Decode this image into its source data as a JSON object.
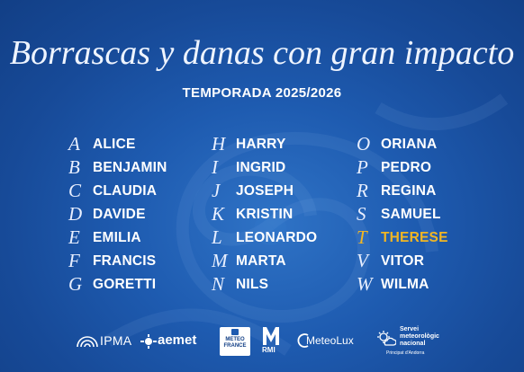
{
  "title": "Borrascas y danas con gran impacto",
  "subtitle": "TEMPORADA 2025/2026",
  "columns": [
    [
      {
        "letter": "A",
        "name": "ALICE"
      },
      {
        "letter": "B",
        "name": "BENJAMIN"
      },
      {
        "letter": "C",
        "name": "CLAUDIA"
      },
      {
        "letter": "D",
        "name": "DAVIDE"
      },
      {
        "letter": "E",
        "name": "EMILIA"
      },
      {
        "letter": "F",
        "name": "FRANCIS"
      },
      {
        "letter": "G",
        "name": "GORETTI"
      }
    ],
    [
      {
        "letter": "H",
        "name": "HARRY"
      },
      {
        "letter": "I",
        "name": "INGRID"
      },
      {
        "letter": "J",
        "name": "JOSEPH"
      },
      {
        "letter": "K",
        "name": "KRISTIN"
      },
      {
        "letter": "L",
        "name": "LEONARDO"
      },
      {
        "letter": "M",
        "name": "MARTA"
      },
      {
        "letter": "N",
        "name": "NILS"
      }
    ],
    [
      {
        "letter": "O",
        "name": "ORIANA"
      },
      {
        "letter": "P",
        "name": "PEDRO"
      },
      {
        "letter": "R",
        "name": "REGINA"
      },
      {
        "letter": "S",
        "name": "SAMUEL"
      },
      {
        "letter": "T",
        "name": "THERESE",
        "highlight": true
      },
      {
        "letter": "V",
        "name": "VITOR"
      },
      {
        "letter": "W",
        "name": "WILMA"
      }
    ]
  ],
  "logos": {
    "ipma": "IPMA",
    "aemet": "aemet",
    "meteofrance_line1": "METEO",
    "meteofrance_line2": "FRANCE",
    "rmi": "RMI",
    "meteolux": "MeteoLux",
    "smn_line1": "Servei",
    "smn_line2": "meteorològic",
    "smn_line3": "nacional",
    "smn_sub": "Principat d'Andorra"
  },
  "colors": {
    "background": "#1e5bb0",
    "text": "#ffffff",
    "highlight": "#f1b623"
  }
}
